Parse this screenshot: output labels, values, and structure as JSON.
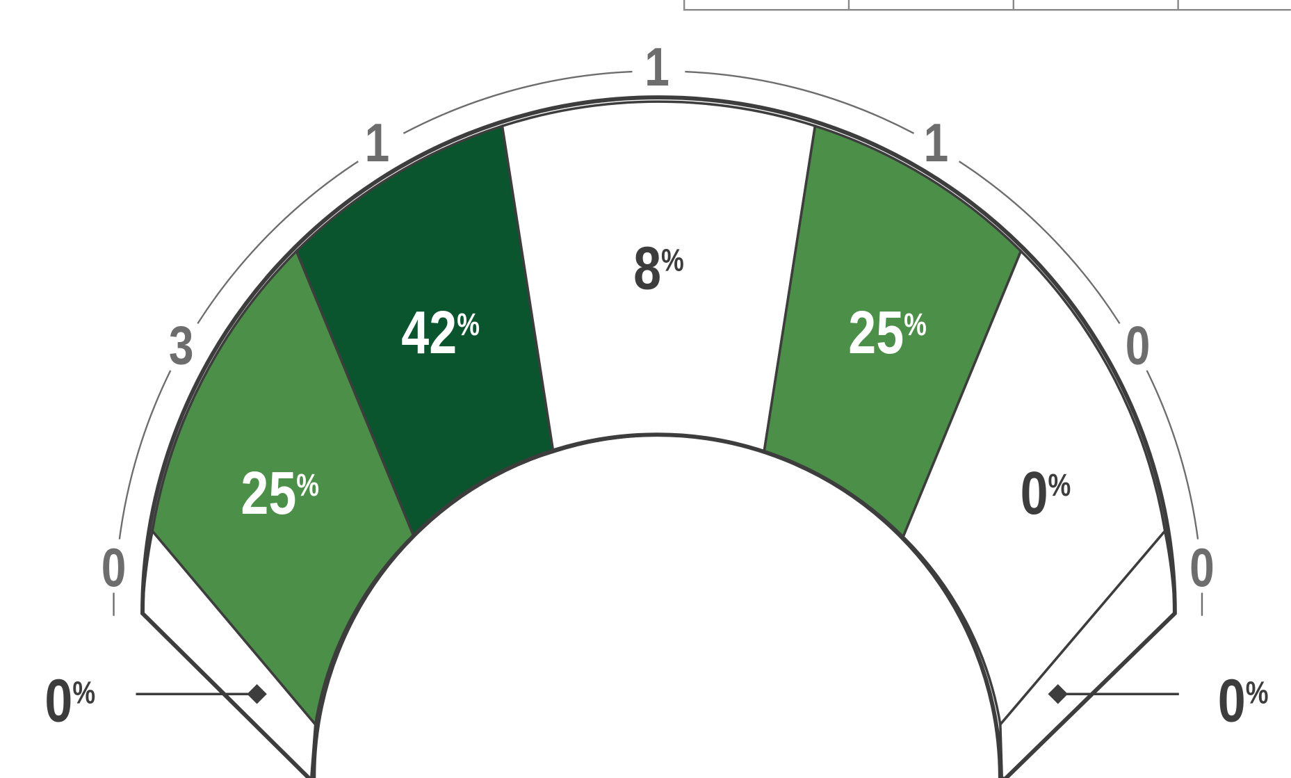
{
  "percent_sign": "%",
  "zones": [
    {
      "percent": 0,
      "count": 0,
      "fill": "#ffffff",
      "text_color": "#3d3d3d"
    },
    {
      "percent": 25,
      "count": 3,
      "fill": "#4c8f48",
      "text_color": "#ffffff"
    },
    {
      "percent": 42,
      "count": 1,
      "fill": "#0a552d",
      "text_color": "#ffffff"
    },
    {
      "percent": 8,
      "count": 1,
      "fill": "#ffffff",
      "text_color": "#3d3d3d"
    },
    {
      "percent": 25,
      "count": 1,
      "fill": "#4c8f48",
      "text_color": "#ffffff"
    },
    {
      "percent": 0,
      "count": 0,
      "fill": "#ffffff",
      "text_color": "#3d3d3d"
    },
    {
      "percent": 0,
      "count": 0,
      "fill": "#ffffff",
      "text_color": "#3d3d3d"
    }
  ]
}
